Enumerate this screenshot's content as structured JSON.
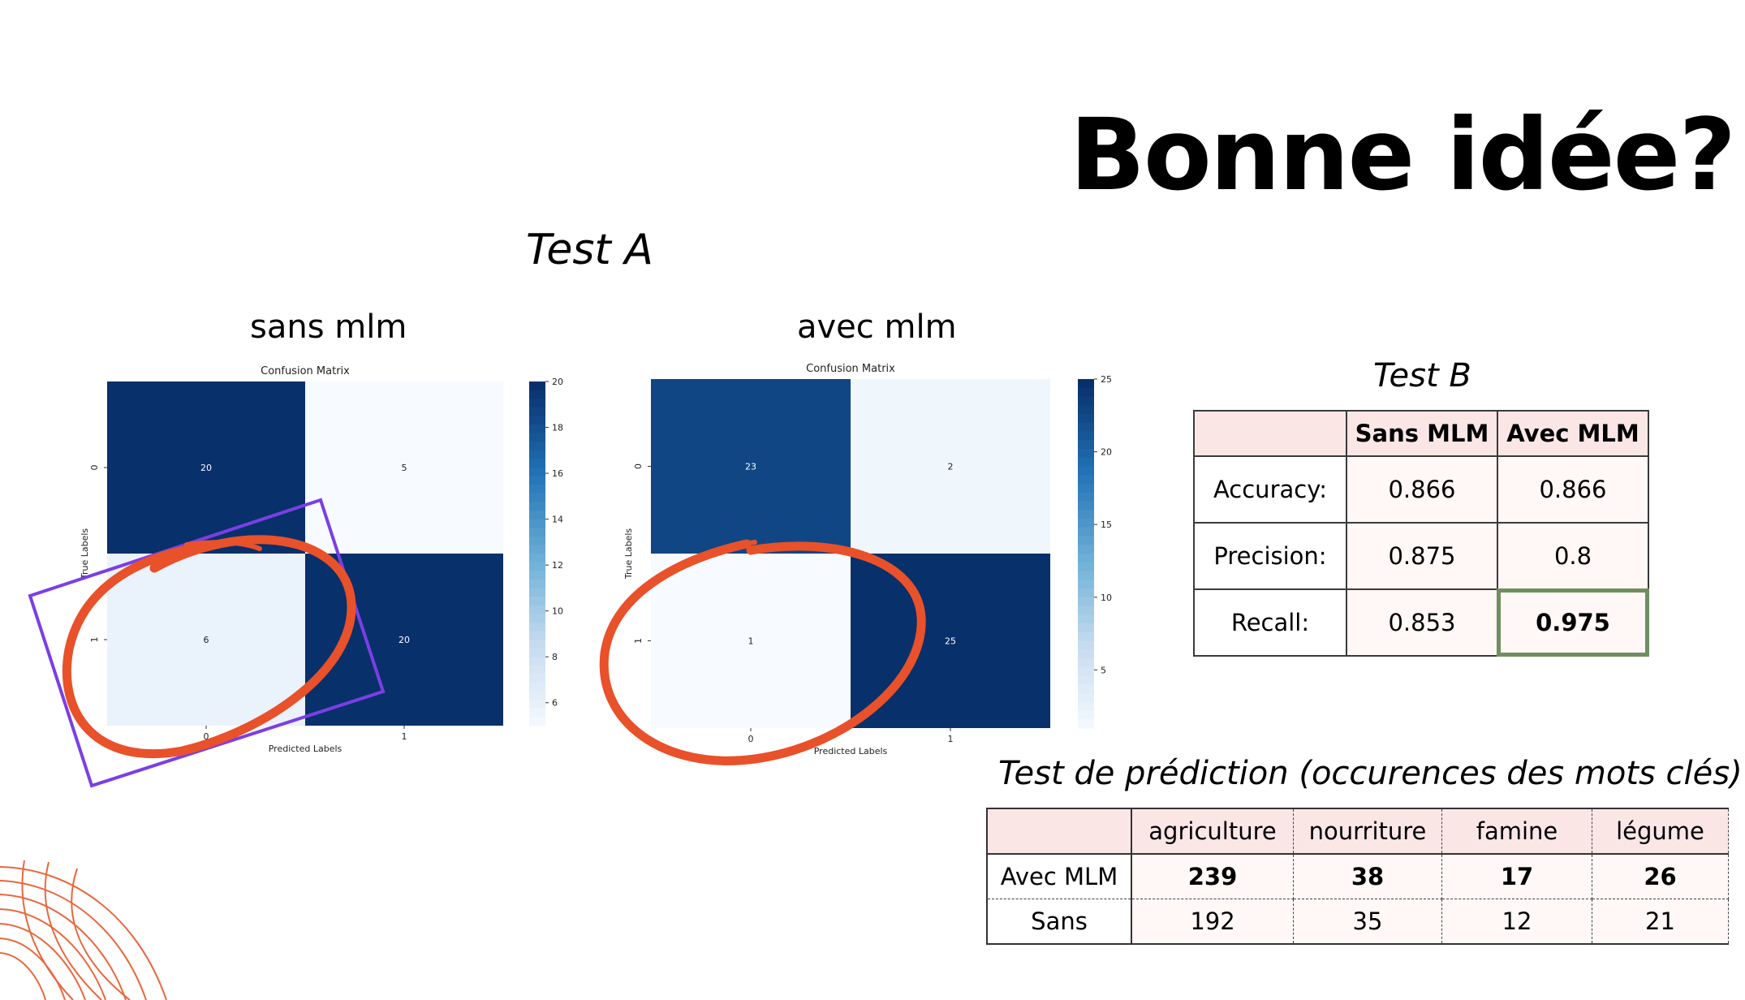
{
  "slide": {
    "title": "Bonne idée?",
    "test_a": "Test A",
    "test_b": "Test B",
    "test_prediction": "Test de prédiction (occurences des mots clés)"
  },
  "chart_data": [
    {
      "type": "heatmap",
      "subtitle": "sans mlm",
      "title": "Confusion Matrix",
      "xlabel": "Predicted Labels",
      "ylabel": "True Labels",
      "x_ticks": [
        "0",
        "1"
      ],
      "y_ticks": [
        "0",
        "1"
      ],
      "values": [
        [
          20,
          5
        ],
        [
          6,
          20
        ]
      ],
      "colorbar": {
        "min": 5,
        "max": 20,
        "ticks": [
          6,
          8,
          10,
          12,
          14,
          16,
          18,
          20
        ],
        "colormap": "Blues"
      },
      "annotation": "red circle around cell [1,0] and purple rectangle"
    },
    {
      "type": "heatmap",
      "subtitle": "avec mlm",
      "title": "Confusion Matrix",
      "xlabel": "Predicted Labels",
      "ylabel": "True Labels",
      "x_ticks": [
        "0",
        "1"
      ],
      "y_ticks": [
        "0",
        "1"
      ],
      "values": [
        [
          23,
          2
        ],
        [
          1,
          25
        ]
      ],
      "colorbar": {
        "min": 1,
        "max": 25,
        "ticks": [
          5,
          10,
          15,
          20,
          25
        ],
        "colormap": "Blues"
      },
      "annotation": "red circle around cell [1,0]"
    }
  ],
  "test_b": {
    "headers": [
      "",
      "Sans MLM",
      "Avec MLM"
    ],
    "rows": [
      {
        "label": "Accuracy:",
        "sans": "0.866",
        "avec": "0.866"
      },
      {
        "label": "Precision:",
        "sans": "0.875",
        "avec": "0.8"
      },
      {
        "label": "Recall:",
        "sans": "0.853",
        "avec": "0.975"
      }
    ]
  },
  "prediction": {
    "headers": [
      "",
      "agriculture",
      "nourriture",
      "famine",
      "légume"
    ],
    "rows": [
      {
        "label": "Avec MLM",
        "values": [
          "239",
          "38",
          "17",
          "26"
        ]
      },
      {
        "label": "Sans",
        "values": [
          "192",
          "35",
          "12",
          "21"
        ]
      }
    ]
  },
  "colors": {
    "annotation_red": "#e8512a",
    "annotation_purple": "#7b3fe4",
    "highlight_green": "#6f8f60",
    "header_pink": "#fbe6e6"
  }
}
